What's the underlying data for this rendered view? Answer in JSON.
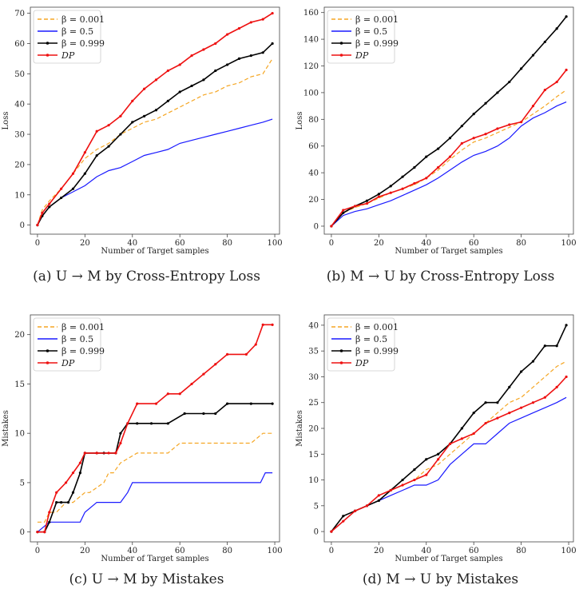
{
  "chart_data": [
    {
      "type": "line",
      "caption": "(a) U → M by Cross-Entropy Loss",
      "xlabel": "Number of Target samples",
      "ylabel": "Loss",
      "xlim": [
        -3,
        102
      ],
      "ylim": [
        -3,
        72
      ],
      "xticks": [
        0,
        20,
        40,
        60,
        80,
        100
      ],
      "yticks": [
        0,
        10,
        20,
        30,
        40,
        50,
        60,
        70
      ],
      "legend_position": "top-left",
      "series": [
        {
          "name": "β = 0.001",
          "color": "#f5a623",
          "style": "dashed",
          "marker": "none",
          "x": [
            0,
            2,
            5,
            10,
            15,
            20,
            25,
            30,
            35,
            40,
            45,
            50,
            55,
            60,
            65,
            70,
            75,
            80,
            85,
            90,
            95,
            99
          ],
          "y": [
            0,
            5,
            8,
            12,
            17,
            22,
            25,
            27,
            30,
            32,
            34,
            35,
            37,
            39,
            41,
            43,
            44,
            46,
            47,
            49,
            50,
            55
          ]
        },
        {
          "name": "β = 0.5",
          "color": "#1a1aff",
          "style": "solid",
          "marker": "none",
          "x": [
            0,
            2,
            5,
            10,
            15,
            20,
            25,
            30,
            35,
            40,
            45,
            50,
            55,
            60,
            65,
            70,
            75,
            80,
            85,
            90,
            95,
            99
          ],
          "y": [
            0,
            3,
            6,
            9,
            11,
            13,
            16,
            18,
            19,
            21,
            23,
            24,
            25,
            27,
            28,
            29,
            30,
            31,
            32,
            33,
            34,
            35
          ]
        },
        {
          "name": "β = 0.999",
          "color": "#000000",
          "style": "solid",
          "marker": "dot",
          "x": [
            0,
            2,
            5,
            10,
            15,
            20,
            25,
            30,
            35,
            40,
            45,
            50,
            55,
            60,
            65,
            70,
            75,
            80,
            85,
            90,
            95,
            99
          ],
          "y": [
            0,
            3,
            6,
            9,
            12,
            17,
            23,
            26,
            30,
            34,
            36,
            38,
            41,
            44,
            46,
            48,
            51,
            53,
            55,
            56,
            57,
            60
          ]
        },
        {
          "name": "DP",
          "color": "#ee1111",
          "style": "solid",
          "marker": "dot",
          "x": [
            0,
            2,
            5,
            10,
            15,
            20,
            25,
            30,
            35,
            40,
            45,
            50,
            55,
            60,
            65,
            70,
            75,
            80,
            85,
            90,
            95,
            99
          ],
          "y": [
            0,
            4,
            7,
            12,
            17,
            24,
            31,
            33,
            36,
            41,
            45,
            48,
            51,
            53,
            56,
            58,
            60,
            63,
            65,
            67,
            68,
            70
          ]
        }
      ]
    },
    {
      "type": "line",
      "caption": "(b) M → U by Cross-Entropy Loss",
      "xlabel": "Number of Target samples",
      "ylabel": "Loss",
      "xlim": [
        -3,
        102
      ],
      "ylim": [
        -6,
        164
      ],
      "xticks": [
        0,
        20,
        40,
        60,
        80,
        100
      ],
      "yticks": [
        0,
        20,
        40,
        60,
        80,
        100,
        120,
        140,
        160
      ],
      "legend_position": "top-left",
      "series": [
        {
          "name": "β = 0.001",
          "color": "#f5a623",
          "style": "dashed",
          "marker": "none",
          "x": [
            0,
            5,
            10,
            15,
            20,
            25,
            30,
            35,
            40,
            45,
            50,
            55,
            60,
            65,
            70,
            75,
            80,
            85,
            90,
            95,
            99
          ],
          "y": [
            0,
            10,
            14,
            17,
            21,
            25,
            28,
            31,
            36,
            42,
            50,
            57,
            63,
            66,
            70,
            74,
            78,
            84,
            90,
            97,
            102
          ]
        },
        {
          "name": "β = 0.5",
          "color": "#1a1aff",
          "style": "solid",
          "marker": "none",
          "x": [
            0,
            5,
            10,
            15,
            20,
            25,
            30,
            35,
            40,
            45,
            50,
            55,
            60,
            65,
            70,
            75,
            80,
            85,
            90,
            95,
            99
          ],
          "y": [
            0,
            8,
            11,
            13,
            16,
            19,
            23,
            27,
            31,
            36,
            42,
            48,
            53,
            56,
            60,
            66,
            75,
            81,
            85,
            90,
            93
          ]
        },
        {
          "name": "β = 0.999",
          "color": "#000000",
          "style": "solid",
          "marker": "dot",
          "x": [
            0,
            5,
            10,
            15,
            20,
            25,
            30,
            35,
            40,
            45,
            50,
            55,
            60,
            65,
            70,
            75,
            80,
            85,
            90,
            95,
            99
          ],
          "y": [
            0,
            10,
            15,
            19,
            24,
            30,
            37,
            44,
            52,
            58,
            66,
            75,
            84,
            92,
            100,
            108,
            118,
            128,
            138,
            148,
            157
          ]
        },
        {
          "name": "DP",
          "color": "#ee1111",
          "style": "solid",
          "marker": "dot",
          "x": [
            0,
            5,
            10,
            15,
            20,
            25,
            30,
            35,
            40,
            45,
            50,
            55,
            60,
            65,
            70,
            75,
            80,
            85,
            90,
            95,
            99
          ],
          "y": [
            0,
            12,
            15,
            17,
            22,
            25,
            28,
            32,
            36,
            44,
            52,
            62,
            66,
            69,
            73,
            76,
            78,
            90,
            102,
            108,
            117
          ]
        }
      ]
    },
    {
      "type": "line",
      "caption": "(c) U → M by Mistakes",
      "xlabel": "Number of Target samples",
      "ylabel": "Mistakes",
      "xlim": [
        -3,
        102
      ],
      "ylim": [
        -1,
        22
      ],
      "xticks": [
        0,
        20,
        40,
        60,
        80,
        100
      ],
      "yticks": [
        0,
        5,
        10,
        15,
        20
      ],
      "legend_position": "top-left",
      "series": [
        {
          "name": "β = 0.001",
          "color": "#f5a623",
          "style": "dashed",
          "marker": "none",
          "x": [
            0,
            3,
            5,
            8,
            12,
            15,
            20,
            22,
            28,
            30,
            32,
            35,
            42,
            55,
            60,
            68,
            75,
            80,
            90,
            95,
            99
          ],
          "y": [
            1,
            1,
            2,
            2,
            3,
            3,
            4,
            4,
            5,
            6,
            6,
            7,
            8,
            8,
            9,
            9,
            9,
            9,
            9,
            10,
            10
          ]
        },
        {
          "name": "β = 0.5",
          "color": "#1a1aff",
          "style": "solid",
          "marker": "none",
          "x": [
            0,
            5,
            10,
            15,
            18,
            20,
            25,
            30,
            35,
            38,
            40,
            50,
            60,
            70,
            80,
            90,
            94,
            96,
            99
          ],
          "y": [
            0,
            1,
            1,
            1,
            1,
            2,
            3,
            3,
            3,
            4,
            5,
            5,
            5,
            5,
            5,
            5,
            5,
            6,
            6
          ]
        },
        {
          "name": "β = 0.999",
          "color": "#000000",
          "style": "solid",
          "marker": "dot",
          "x": [
            0,
            3,
            5,
            8,
            10,
            13,
            15,
            18,
            20,
            25,
            28,
            33,
            35,
            38,
            42,
            48,
            55,
            62,
            70,
            75,
            80,
            90,
            99
          ],
          "y": [
            0,
            0,
            1,
            3,
            3,
            3,
            4,
            6,
            8,
            8,
            8,
            8,
            10,
            11,
            11,
            11,
            11,
            12,
            12,
            12,
            13,
            13,
            13
          ]
        },
        {
          "name": "DP",
          "color": "#ee1111",
          "style": "solid",
          "marker": "dot",
          "x": [
            0,
            3,
            5,
            8,
            12,
            15,
            18,
            20,
            25,
            30,
            33,
            35,
            38,
            42,
            50,
            55,
            60,
            65,
            70,
            75,
            80,
            88,
            92,
            95,
            99
          ],
          "y": [
            0,
            0,
            2,
            4,
            5,
            6,
            7,
            8,
            8,
            8,
            8,
            9,
            11,
            13,
            13,
            14,
            14,
            15,
            16,
            17,
            18,
            18,
            19,
            21,
            21
          ]
        }
      ]
    },
    {
      "type": "line",
      "caption": "(d) M → U by Mistakes",
      "xlabel": "Number of Target samples",
      "ylabel": "Mistakes",
      "xlim": [
        -3,
        102
      ],
      "ylim": [
        -2,
        42
      ],
      "xticks": [
        0,
        20,
        40,
        60,
        80,
        100
      ],
      "yticks": [
        0,
        5,
        10,
        15,
        20,
        25,
        30,
        35,
        40
      ],
      "legend_position": "top-left",
      "series": [
        {
          "name": "β = 0.001",
          "color": "#f5a623",
          "style": "dashed",
          "marker": "none",
          "x": [
            0,
            5,
            10,
            15,
            20,
            25,
            30,
            35,
            40,
            45,
            50,
            55,
            60,
            65,
            70,
            75,
            80,
            85,
            90,
            95,
            99
          ],
          "y": [
            0,
            3,
            4,
            5,
            6,
            8,
            9,
            10,
            12,
            13,
            15,
            17,
            19,
            21,
            23,
            25,
            26,
            28,
            30,
            32,
            33
          ]
        },
        {
          "name": "β = 0.5",
          "color": "#1a1aff",
          "style": "solid",
          "marker": "none",
          "x": [
            0,
            5,
            10,
            15,
            20,
            25,
            30,
            35,
            40,
            45,
            50,
            55,
            60,
            65,
            70,
            75,
            80,
            85,
            90,
            95,
            99
          ],
          "y": [
            0,
            2,
            4,
            5,
            6,
            7,
            8,
            9,
            9,
            10,
            13,
            15,
            17,
            17,
            19,
            21,
            22,
            23,
            24,
            25,
            26
          ]
        },
        {
          "name": "β = 0.999",
          "color": "#000000",
          "style": "solid",
          "marker": "dot",
          "x": [
            0,
            5,
            10,
            15,
            20,
            25,
            30,
            35,
            40,
            45,
            50,
            55,
            60,
            65,
            70,
            75,
            80,
            85,
            90,
            95,
            99
          ],
          "y": [
            0,
            3,
            4,
            5,
            6,
            8,
            10,
            12,
            14,
            15,
            17,
            20,
            23,
            25,
            25,
            28,
            31,
            33,
            36,
            36,
            40
          ]
        },
        {
          "name": "DP",
          "color": "#ee1111",
          "style": "solid",
          "marker": "dot",
          "x": [
            0,
            5,
            10,
            15,
            20,
            25,
            30,
            35,
            40,
            45,
            50,
            55,
            60,
            65,
            70,
            75,
            80,
            85,
            90,
            95,
            99
          ],
          "y": [
            0,
            2,
            4,
            5,
            7,
            8,
            9,
            10,
            11,
            14,
            17,
            18,
            19,
            21,
            22,
            23,
            24,
            25,
            26,
            28,
            30
          ]
        }
      ]
    }
  ]
}
